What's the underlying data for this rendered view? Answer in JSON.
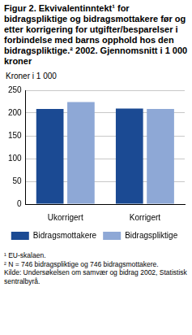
{
  "chart_data": {
    "type": "bar",
    "title": "Figur 2. Ekvivalentinntekt¹ for bidragspliktige og bidragsmottakere før og etter korrigering for utgifter/besparelser i forbindelse med barns opphold hos den bidragspliktige.² 2002. Gjennomsnitt i 1 000 kroner",
    "ylabel": "Kroner i 1 000",
    "categories": [
      "Ukorrigert",
      "Korrigert"
    ],
    "series": [
      {
        "name": "Bidragsmottakere",
        "color": "#1b4a93",
        "values": [
          209,
          210
        ]
      },
      {
        "name": "Bidragspliktige",
        "color": "#8ea8d6",
        "values": [
          224,
          209
        ]
      }
    ],
    "ylim": [
      0,
      250
    ],
    "yticks": [
      0,
      50,
      100,
      150,
      200,
      250
    ],
    "grid": true,
    "legend": "bottom",
    "notes": [
      "¹ EU-skalaen.",
      "² N = 746 bidragspliktige og 746 bidragsmottakere.",
      "Kilde: Undersøkelsen om samvær og bidrag 2002, Statistisk sentralbyrå."
    ]
  }
}
